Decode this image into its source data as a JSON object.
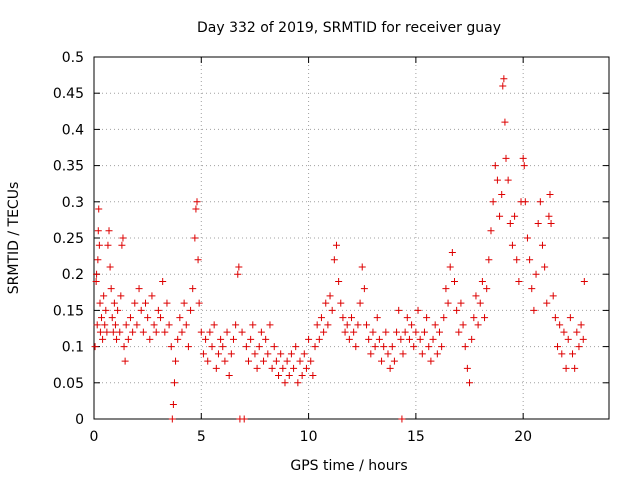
{
  "chart_data": {
    "type": "scatter",
    "title": "Day 332 of 2019, SRMTID for receiver guay",
    "xlabel": "GPS time / hours",
    "ylabel": "SRMTID / TECUs",
    "xlim": [
      0,
      24
    ],
    "ylim": [
      0,
      0.5
    ],
    "xticks": [
      0,
      5,
      10,
      15,
      20
    ],
    "yticks": [
      0,
      0.05,
      0.1,
      0.15,
      0.2,
      0.25,
      0.3,
      0.35,
      0.4,
      0.45,
      0.5
    ],
    "xtick_labels": [
      "0",
      "5",
      "10",
      "15",
      "20"
    ],
    "ytick_labels": [
      "0",
      "0.05",
      "0.1",
      "0.15",
      "0.2",
      "0.25",
      "0.3",
      "0.35",
      "0.4",
      "0.45",
      "0.5"
    ],
    "grid": true,
    "marker": "plus",
    "color": "#dd0000",
    "series": [
      {
        "name": "SRMTID",
        "points": [
          [
            0.05,
            0.1
          ],
          [
            0.1,
            0.19
          ],
          [
            0.12,
            0.2
          ],
          [
            0.15,
            0.13
          ],
          [
            0.18,
            0.22
          ],
          [
            0.2,
            0.26
          ],
          [
            0.22,
            0.29
          ],
          [
            0.25,
            0.24
          ],
          [
            0.28,
            0.16
          ],
          [
            0.3,
            0.12
          ],
          [
            0.35,
            0.14
          ],
          [
            0.4,
            0.11
          ],
          [
            0.45,
            0.17
          ],
          [
            0.5,
            0.13
          ],
          [
            0.55,
            0.15
          ],
          [
            0.6,
            0.12
          ],
          [
            0.65,
            0.24
          ],
          [
            0.7,
            0.26
          ],
          [
            0.75,
            0.21
          ],
          [
            0.8,
            0.18
          ],
          [
            0.85,
            0.14
          ],
          [
            0.9,
            0.12
          ],
          [
            0.95,
            0.16
          ],
          [
            1.0,
            0.13
          ],
          [
            1.05,
            0.11
          ],
          [
            1.1,
            0.15
          ],
          [
            1.2,
            0.12
          ],
          [
            1.25,
            0.17
          ],
          [
            1.3,
            0.24
          ],
          [
            1.35,
            0.25
          ],
          [
            1.4,
            0.1
          ],
          [
            1.45,
            0.08
          ],
          [
            1.5,
            0.13
          ],
          [
            1.6,
            0.11
          ],
          [
            1.7,
            0.14
          ],
          [
            1.8,
            0.12
          ],
          [
            1.9,
            0.16
          ],
          [
            2.0,
            0.13
          ],
          [
            2.1,
            0.18
          ],
          [
            2.2,
            0.15
          ],
          [
            2.3,
            0.12
          ],
          [
            2.4,
            0.16
          ],
          [
            2.5,
            0.14
          ],
          [
            2.6,
            0.11
          ],
          [
            2.7,
            0.17
          ],
          [
            2.8,
            0.13
          ],
          [
            2.9,
            0.12
          ],
          [
            3.0,
            0.15
          ],
          [
            3.1,
            0.14
          ],
          [
            3.2,
            0.19
          ],
          [
            3.3,
            0.12
          ],
          [
            3.4,
            0.16
          ],
          [
            3.5,
            0.13
          ],
          [
            3.6,
            0.1
          ],
          [
            3.65,
            0.0
          ],
          [
            3.7,
            0.02
          ],
          [
            3.75,
            0.05
          ],
          [
            3.8,
            0.08
          ],
          [
            3.9,
            0.11
          ],
          [
            4.0,
            0.14
          ],
          [
            4.1,
            0.12
          ],
          [
            4.2,
            0.16
          ],
          [
            4.3,
            0.13
          ],
          [
            4.4,
            0.1
          ],
          [
            4.5,
            0.15
          ],
          [
            4.6,
            0.18
          ],
          [
            4.7,
            0.25
          ],
          [
            4.75,
            0.29
          ],
          [
            4.8,
            0.3
          ],
          [
            4.85,
            0.22
          ],
          [
            4.9,
            0.16
          ],
          [
            5.0,
            0.12
          ],
          [
            5.1,
            0.09
          ],
          [
            5.2,
            0.11
          ],
          [
            5.3,
            0.08
          ],
          [
            5.4,
            0.12
          ],
          [
            5.5,
            0.1
          ],
          [
            5.6,
            0.13
          ],
          [
            5.7,
            0.07
          ],
          [
            5.8,
            0.09
          ],
          [
            5.9,
            0.11
          ],
          [
            6.0,
            0.1
          ],
          [
            6.1,
            0.08
          ],
          [
            6.2,
            0.12
          ],
          [
            6.3,
            0.06
          ],
          [
            6.4,
            0.09
          ],
          [
            6.5,
            0.11
          ],
          [
            6.6,
            0.13
          ],
          [
            6.7,
            0.2
          ],
          [
            6.75,
            0.21
          ],
          [
            6.8,
            0.0
          ],
          [
            6.9,
            0.12
          ],
          [
            7.0,
            0.0
          ],
          [
            7.1,
            0.1
          ],
          [
            7.2,
            0.08
          ],
          [
            7.3,
            0.11
          ],
          [
            7.4,
            0.13
          ],
          [
            7.5,
            0.09
          ],
          [
            7.6,
            0.07
          ],
          [
            7.7,
            0.1
          ],
          [
            7.8,
            0.12
          ],
          [
            7.9,
            0.08
          ],
          [
            8.0,
            0.11
          ],
          [
            8.1,
            0.09
          ],
          [
            8.2,
            0.13
          ],
          [
            8.3,
            0.07
          ],
          [
            8.4,
            0.1
          ],
          [
            8.5,
            0.08
          ],
          [
            8.6,
            0.06
          ],
          [
            8.7,
            0.09
          ],
          [
            8.8,
            0.07
          ],
          [
            8.9,
            0.05
          ],
          [
            9.0,
            0.08
          ],
          [
            9.1,
            0.06
          ],
          [
            9.2,
            0.09
          ],
          [
            9.3,
            0.07
          ],
          [
            9.4,
            0.1
          ],
          [
            9.5,
            0.05
          ],
          [
            9.6,
            0.08
          ],
          [
            9.7,
            0.06
          ],
          [
            9.8,
            0.09
          ],
          [
            9.9,
            0.07
          ],
          [
            10.0,
            0.11
          ],
          [
            10.1,
            0.08
          ],
          [
            10.2,
            0.06
          ],
          [
            10.3,
            0.1
          ],
          [
            10.4,
            0.13
          ],
          [
            10.5,
            0.11
          ],
          [
            10.6,
            0.14
          ],
          [
            10.7,
            0.12
          ],
          [
            10.8,
            0.16
          ],
          [
            10.9,
            0.13
          ],
          [
            11.0,
            0.17
          ],
          [
            11.1,
            0.15
          ],
          [
            11.2,
            0.22
          ],
          [
            11.3,
            0.24
          ],
          [
            11.4,
            0.19
          ],
          [
            11.5,
            0.16
          ],
          [
            11.6,
            0.14
          ],
          [
            11.7,
            0.12
          ],
          [
            11.8,
            0.13
          ],
          [
            11.9,
            0.11
          ],
          [
            12.0,
            0.14
          ],
          [
            12.1,
            0.12
          ],
          [
            12.2,
            0.1
          ],
          [
            12.3,
            0.13
          ],
          [
            12.4,
            0.16
          ],
          [
            12.5,
            0.21
          ],
          [
            12.6,
            0.18
          ],
          [
            12.7,
            0.13
          ],
          [
            12.8,
            0.11
          ],
          [
            12.9,
            0.09
          ],
          [
            13.0,
            0.12
          ],
          [
            13.1,
            0.1
          ],
          [
            13.2,
            0.14
          ],
          [
            13.3,
            0.11
          ],
          [
            13.4,
            0.08
          ],
          [
            13.5,
            0.1
          ],
          [
            13.6,
            0.12
          ],
          [
            13.7,
            0.09
          ],
          [
            13.8,
            0.07
          ],
          [
            13.9,
            0.1
          ],
          [
            14.0,
            0.08
          ],
          [
            14.1,
            0.12
          ],
          [
            14.2,
            0.15
          ],
          [
            14.3,
            0.11
          ],
          [
            14.35,
            0.0
          ],
          [
            14.4,
            0.09
          ],
          [
            14.5,
            0.12
          ],
          [
            14.6,
            0.14
          ],
          [
            14.7,
            0.11
          ],
          [
            14.8,
            0.13
          ],
          [
            14.9,
            0.1
          ],
          [
            15.0,
            0.12
          ],
          [
            15.1,
            0.15
          ],
          [
            15.2,
            0.11
          ],
          [
            15.3,
            0.09
          ],
          [
            15.4,
            0.12
          ],
          [
            15.5,
            0.14
          ],
          [
            15.6,
            0.1
          ],
          [
            15.7,
            0.08
          ],
          [
            15.8,
            0.11
          ],
          [
            15.9,
            0.13
          ],
          [
            16.0,
            0.09
          ],
          [
            16.1,
            0.12
          ],
          [
            16.2,
            0.1
          ],
          [
            16.3,
            0.14
          ],
          [
            16.4,
            0.18
          ],
          [
            16.5,
            0.16
          ],
          [
            16.6,
            0.21
          ],
          [
            16.7,
            0.23
          ],
          [
            16.8,
            0.19
          ],
          [
            16.9,
            0.15
          ],
          [
            17.0,
            0.12
          ],
          [
            17.1,
            0.16
          ],
          [
            17.2,
            0.13
          ],
          [
            17.3,
            0.1
          ],
          [
            17.4,
            0.07
          ],
          [
            17.5,
            0.05
          ],
          [
            17.6,
            0.11
          ],
          [
            17.7,
            0.14
          ],
          [
            17.8,
            0.17
          ],
          [
            17.9,
            0.13
          ],
          [
            18.0,
            0.16
          ],
          [
            18.1,
            0.19
          ],
          [
            18.2,
            0.14
          ],
          [
            18.3,
            0.18
          ],
          [
            18.4,
            0.22
          ],
          [
            18.5,
            0.26
          ],
          [
            18.6,
            0.3
          ],
          [
            18.7,
            0.35
          ],
          [
            18.8,
            0.33
          ],
          [
            18.9,
            0.28
          ],
          [
            19.0,
            0.31
          ],
          [
            19.05,
            0.46
          ],
          [
            19.1,
            0.47
          ],
          [
            19.15,
            0.41
          ],
          [
            19.2,
            0.36
          ],
          [
            19.3,
            0.33
          ],
          [
            19.4,
            0.27
          ],
          [
            19.5,
            0.24
          ],
          [
            19.6,
            0.28
          ],
          [
            19.7,
            0.22
          ],
          [
            19.8,
            0.19
          ],
          [
            19.9,
            0.3
          ],
          [
            20.0,
            0.36
          ],
          [
            20.05,
            0.35
          ],
          [
            20.1,
            0.3
          ],
          [
            20.2,
            0.25
          ],
          [
            20.3,
            0.22
          ],
          [
            20.4,
            0.18
          ],
          [
            20.5,
            0.15
          ],
          [
            20.6,
            0.2
          ],
          [
            20.7,
            0.27
          ],
          [
            20.8,
            0.3
          ],
          [
            20.9,
            0.24
          ],
          [
            21.0,
            0.21
          ],
          [
            21.1,
            0.16
          ],
          [
            21.2,
            0.28
          ],
          [
            21.25,
            0.31
          ],
          [
            21.3,
            0.27
          ],
          [
            21.4,
            0.17
          ],
          [
            21.5,
            0.14
          ],
          [
            21.6,
            0.1
          ],
          [
            21.7,
            0.13
          ],
          [
            21.8,
            0.09
          ],
          [
            21.9,
            0.12
          ],
          [
            22.0,
            0.07
          ],
          [
            22.1,
            0.11
          ],
          [
            22.2,
            0.14
          ],
          [
            22.3,
            0.09
          ],
          [
            22.4,
            0.07
          ],
          [
            22.5,
            0.12
          ],
          [
            22.6,
            0.1
          ],
          [
            22.7,
            0.13
          ],
          [
            22.8,
            0.11
          ],
          [
            22.85,
            0.19
          ]
        ]
      }
    ]
  }
}
